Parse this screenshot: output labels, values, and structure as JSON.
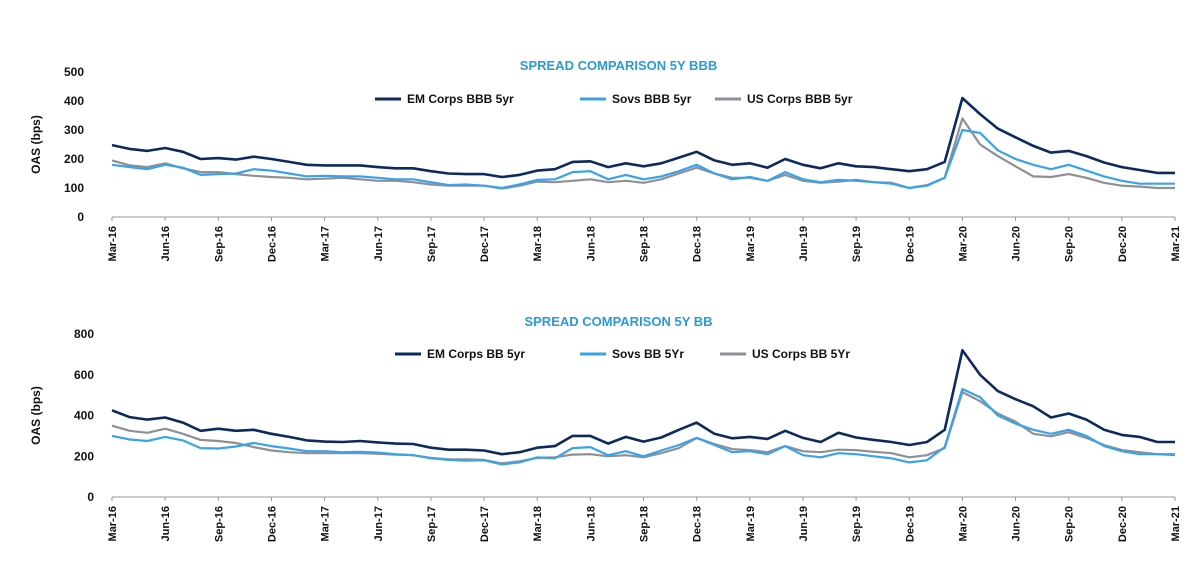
{
  "colors": {
    "title": "#2a9ad9",
    "em": "#0d2a5e",
    "sovs": "#3aa3e8",
    "us": "#8f8f96",
    "axis": "#9a9a9a"
  },
  "chart_data": [
    {
      "type": "line",
      "title": "SPREAD COMPARISON 5Y BBB",
      "ylabel": "OAS (bps)",
      "xlabel": "",
      "ylim": [
        0,
        500
      ],
      "yticks": [
        0,
        100,
        200,
        300,
        400,
        500
      ],
      "legend_placement": "top-center",
      "grid": false,
      "x_tick_labels": [
        "Mar-16",
        "Jun-16",
        "Sep-16",
        "Dec-16",
        "Mar-17",
        "Jun-17",
        "Sep-17",
        "Dec-17",
        "Mar-18",
        "Jun-18",
        "Sep-18",
        "Dec-18",
        "Mar-19",
        "Jun-19",
        "Sep-19",
        "Dec-19",
        "Mar-20",
        "Jun-20",
        "Sep-20",
        "Dec-20",
        "Mar-21"
      ],
      "x": [
        "Mar-16",
        "Apr-16",
        "May-16",
        "Jun-16",
        "Jul-16",
        "Aug-16",
        "Sep-16",
        "Oct-16",
        "Nov-16",
        "Dec-16",
        "Jan-17",
        "Feb-17",
        "Mar-17",
        "Apr-17",
        "May-17",
        "Jun-17",
        "Jul-17",
        "Aug-17",
        "Sep-17",
        "Oct-17",
        "Nov-17",
        "Dec-17",
        "Jan-18",
        "Feb-18",
        "Mar-18",
        "Apr-18",
        "May-18",
        "Jun-18",
        "Jul-18",
        "Aug-18",
        "Sep-18",
        "Oct-18",
        "Nov-18",
        "Dec-18",
        "Jan-19",
        "Feb-19",
        "Mar-19",
        "Apr-19",
        "May-19",
        "Jun-19",
        "Jul-19",
        "Aug-19",
        "Sep-19",
        "Oct-19",
        "Nov-19",
        "Dec-19",
        "Jan-20",
        "Feb-20",
        "Mar-20",
        "Apr-20",
        "May-20",
        "Jun-20",
        "Jul-20",
        "Aug-20",
        "Sep-20",
        "Oct-20",
        "Nov-20",
        "Dec-20",
        "Jan-21",
        "Feb-21",
        "Mar-21"
      ],
      "series": [
        {
          "name": "EM Corps BBB 5yr",
          "color_key": "em",
          "values": [
            248,
            235,
            228,
            238,
            225,
            200,
            203,
            198,
            208,
            200,
            190,
            180,
            178,
            178,
            178,
            172,
            168,
            168,
            158,
            150,
            148,
            148,
            138,
            145,
            160,
            165,
            190,
            192,
            172,
            185,
            175,
            185,
            205,
            225,
            195,
            180,
            185,
            170,
            200,
            180,
            168,
            185,
            175,
            172,
            165,
            158,
            165,
            190,
            410,
            355,
            305,
            275,
            245,
            222,
            228,
            210,
            188,
            172,
            162,
            152,
            152
          ]
        },
        {
          "name": "Sovs BBB 5yr",
          "color_key": "sovs",
          "values": [
            180,
            172,
            165,
            180,
            170,
            145,
            148,
            150,
            165,
            160,
            150,
            140,
            142,
            140,
            140,
            135,
            130,
            130,
            120,
            110,
            112,
            108,
            100,
            112,
            128,
            130,
            155,
            158,
            130,
            145,
            130,
            140,
            158,
            180,
            150,
            130,
            138,
            125,
            155,
            130,
            120,
            128,
            125,
            120,
            115,
            100,
            108,
            135,
            300,
            290,
            230,
            200,
            180,
            165,
            180,
            160,
            140,
            125,
            115,
            115,
            115
          ]
        },
        {
          "name": "US Corps BBB 5yr",
          "color_key": "us",
          "values": [
            195,
            178,
            172,
            185,
            168,
            155,
            155,
            148,
            142,
            138,
            135,
            130,
            132,
            135,
            130,
            125,
            125,
            120,
            112,
            108,
            108,
            108,
            98,
            108,
            122,
            120,
            125,
            130,
            120,
            125,
            118,
            130,
            150,
            170,
            150,
            135,
            135,
            125,
            145,
            125,
            118,
            122,
            128,
            120,
            118,
            100,
            110,
            135,
            340,
            250,
            210,
            175,
            140,
            138,
            148,
            135,
            118,
            108,
            105,
            100,
            100
          ]
        }
      ]
    },
    {
      "type": "line",
      "title": "SPREAD COMPARISON 5Y BB",
      "ylabel": "OAS (bps)",
      "xlabel": "",
      "ylim": [
        0,
        800
      ],
      "yticks": [
        0,
        200,
        400,
        600,
        800
      ],
      "legend_placement": "top-center",
      "grid": false,
      "x_tick_labels": [
        "Mar-16",
        "Jun-16",
        "Sep-16",
        "Dec-16",
        "Mar-17",
        "Jun-17",
        "Sep-17",
        "Dec-17",
        "Mar-18",
        "Jun-18",
        "Sep-18",
        "Dec-18",
        "Mar-19",
        "Jun-19",
        "Sep-19",
        "Dec-19",
        "Mar-20",
        "Jun-20",
        "Sep-20",
        "Dec-20",
        "Mar-21"
      ],
      "x": [
        "Mar-16",
        "Apr-16",
        "May-16",
        "Jun-16",
        "Jul-16",
        "Aug-16",
        "Sep-16",
        "Oct-16",
        "Nov-16",
        "Dec-16",
        "Jan-17",
        "Feb-17",
        "Mar-17",
        "Apr-17",
        "May-17",
        "Jun-17",
        "Jul-17",
        "Aug-17",
        "Sep-17",
        "Oct-17",
        "Nov-17",
        "Dec-17",
        "Jan-18",
        "Feb-18",
        "Mar-18",
        "Apr-18",
        "May-18",
        "Jun-18",
        "Jul-18",
        "Aug-18",
        "Sep-18",
        "Oct-18",
        "Nov-18",
        "Dec-18",
        "Jan-19",
        "Feb-19",
        "Mar-19",
        "Apr-19",
        "May-19",
        "Jun-19",
        "Jul-19",
        "Aug-19",
        "Sep-19",
        "Oct-19",
        "Nov-19",
        "Dec-19",
        "Jan-20",
        "Feb-20",
        "Mar-20",
        "Apr-20",
        "May-20",
        "Jun-20",
        "Jul-20",
        "Aug-20",
        "Sep-20",
        "Oct-20",
        "Nov-20",
        "Dec-20",
        "Jan-21",
        "Feb-21",
        "Mar-21"
      ],
      "series": [
        {
          "name": "EM Corps BB 5yr",
          "color_key": "em",
          "values": [
            425,
            392,
            380,
            390,
            365,
            325,
            335,
            325,
            330,
            310,
            295,
            278,
            272,
            270,
            275,
            268,
            262,
            260,
            242,
            232,
            232,
            228,
            210,
            220,
            242,
            250,
            300,
            300,
            262,
            295,
            272,
            292,
            330,
            365,
            310,
            288,
            295,
            285,
            325,
            290,
            270,
            315,
            292,
            280,
            270,
            255,
            270,
            330,
            720,
            600,
            520,
            480,
            445,
            390,
            410,
            380,
            330,
            305,
            295,
            270,
            270
          ]
        },
        {
          "name": "Sovs BB 5Yr",
          "color_key": "sovs",
          "values": [
            300,
            282,
            275,
            295,
            278,
            240,
            238,
            248,
            265,
            250,
            238,
            225,
            225,
            220,
            222,
            218,
            210,
            205,
            190,
            182,
            178,
            180,
            160,
            170,
            195,
            190,
            240,
            245,
            205,
            225,
            200,
            228,
            255,
            290,
            255,
            220,
            225,
            210,
            250,
            205,
            195,
            215,
            210,
            200,
            190,
            170,
            180,
            245,
            530,
            490,
            400,
            360,
            330,
            310,
            330,
            300,
            250,
            225,
            210,
            210,
            210
          ]
        },
        {
          "name": "US Corps BB 5Yr",
          "color_key": "us",
          "values": [
            350,
            325,
            315,
            335,
            310,
            280,
            275,
            265,
            245,
            228,
            220,
            215,
            215,
            215,
            215,
            212,
            208,
            205,
            192,
            185,
            185,
            182,
            165,
            175,
            192,
            195,
            208,
            210,
            200,
            205,
            195,
            215,
            240,
            290,
            260,
            235,
            230,
            220,
            250,
            225,
            220,
            232,
            230,
            222,
            215,
            195,
            205,
            240,
            515,
            470,
            410,
            370,
            310,
            298,
            318,
            290,
            255,
            230,
            220,
            210,
            205
          ]
        }
      ]
    }
  ]
}
